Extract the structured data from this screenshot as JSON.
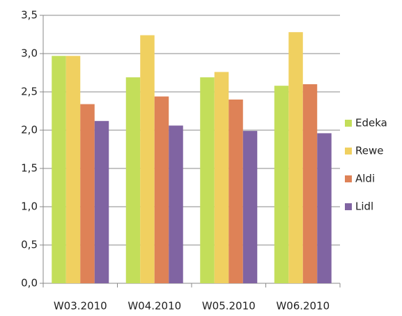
{
  "chart_data": {
    "type": "bar",
    "categories": [
      "W03.2010",
      "W04.2010",
      "W05.2010",
      "W06.2010"
    ],
    "series": [
      {
        "name": "Edeka",
        "color": "#c3de5a",
        "values": [
          2.97,
          2.69,
          2.69,
          2.58
        ]
      },
      {
        "name": "Rewe",
        "color": "#f0d060",
        "values": [
          2.97,
          3.24,
          2.76,
          3.28
        ]
      },
      {
        "name": "Aldi",
        "color": "#de8257",
        "values": [
          2.34,
          2.44,
          2.4,
          2.6
        ]
      },
      {
        "name": "Lidl",
        "color": "#8064a2",
        "values": [
          2.12,
          2.06,
          1.99,
          1.96
        ]
      }
    ],
    "ylim": [
      0,
      3.5
    ],
    "yticks": [
      {
        "value": 0,
        "label": "0,0"
      },
      {
        "value": 0.5,
        "label": "0,5"
      },
      {
        "value": 1,
        "label": "1,0"
      },
      {
        "value": 1.5,
        "label": "1,5"
      },
      {
        "value": 2,
        "label": "2,0"
      },
      {
        "value": 2.5,
        "label": "2,5"
      },
      {
        "value": 3,
        "label": "3,0"
      },
      {
        "value": 3.5,
        "label": "3,5"
      }
    ],
    "grid": true,
    "legend": "right"
  }
}
